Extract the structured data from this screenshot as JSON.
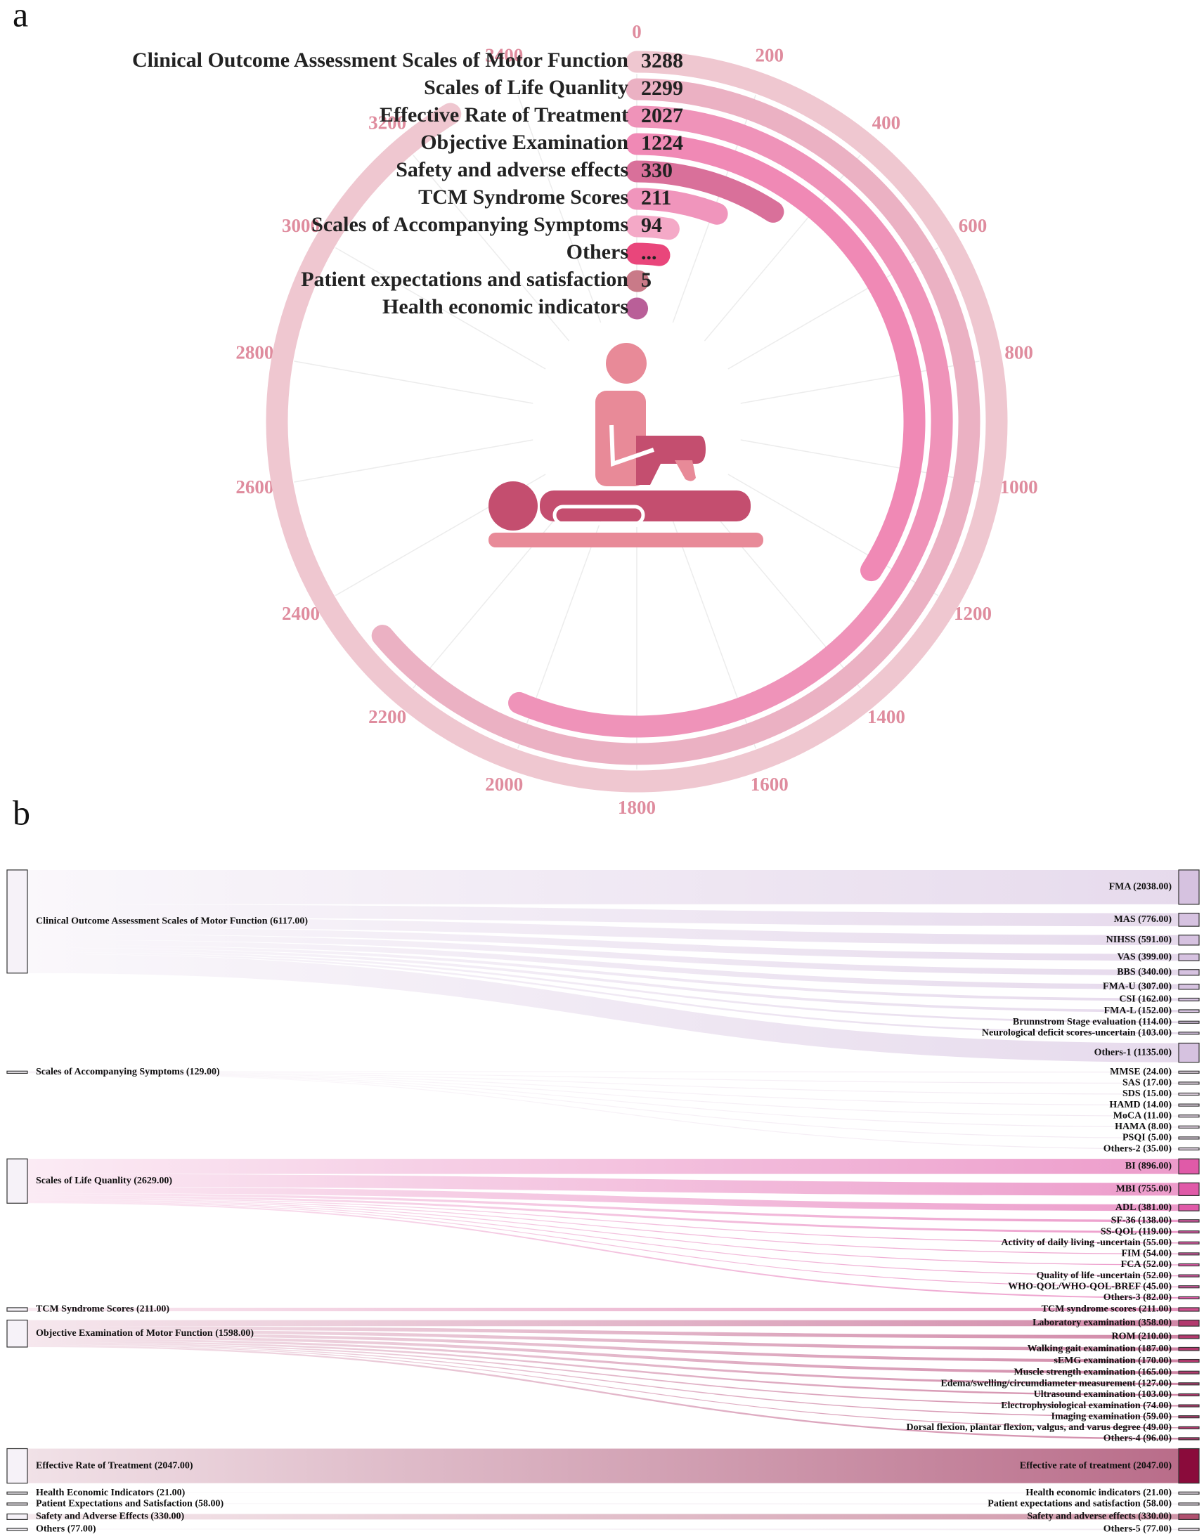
{
  "chart_data": [
    {
      "type": "radial-bar",
      "panel": "a",
      "categories": [
        "Clinical Outcome Assessment Scales of Motor Function",
        "Scales of Life Quanlity",
        "Effective Rate of Treatment",
        "Objective Examination",
        "Safety and adverse effects",
        "TCM Syndrome Scores",
        "Scales of Accompanying Symptoms",
        "Others",
        "Patient expectations and satisfaction",
        "Health economic indicators"
      ],
      "values": [
        3288,
        2299,
        2027,
        1224,
        330,
        211,
        94,
        77,
        5,
        2
      ],
      "value_labels": [
        "3288",
        "2299",
        "2027",
        "1224",
        "330",
        "211",
        "94",
        "...",
        "5",
        null
      ],
      "colors": [
        "#efc7d0",
        "#ebb1c3",
        "#ef93b9",
        "#f089b5",
        "#d9709a",
        "#f095bc",
        "#f4a9c7",
        "#e9467b",
        "#c97a88",
        "#b95f98"
      ],
      "xlim": [
        0,
        3600
      ],
      "xticks": [
        0,
        200,
        400,
        600,
        800,
        1000,
        1200,
        1400,
        1600,
        1800,
        2000,
        2200,
        2400,
        2600,
        2800,
        3000,
        3200,
        3400
      ],
      "grid": true
    },
    {
      "type": "sankey",
      "panel": "b",
      "flows": [
        {
          "label": "Clinical Outcome Assessment Scales of Motor Function (6117.00)",
          "value": 6117,
          "color": "#d6c2e0",
          "targets": [
            {
              "label": "FMA (2038.00)",
              "value": 2038
            },
            {
              "label": "MAS (776.00)",
              "value": 776
            },
            {
              "label": "NIHSS (591.00)",
              "value": 591
            },
            {
              "label": "VAS (399.00)",
              "value": 399
            },
            {
              "label": "BBS (340.00)",
              "value": 340
            },
            {
              "label": "FMA-U (307.00)",
              "value": 307
            },
            {
              "label": "CSI (162.00)",
              "value": 162
            },
            {
              "label": "FMA-L (152.00)",
              "value": 152
            },
            {
              "label": "Brunnstrom Stage evaluation (114.00)",
              "value": 114
            },
            {
              "label": "Neurological deficit scores-uncertain (103.00)",
              "value": 103
            },
            {
              "label": "Others-1 (1135.00)",
              "value": 1135
            }
          ]
        },
        {
          "label": "Scales of Accompanying Symptoms (129.00)",
          "value": 129,
          "color": "#eadbea",
          "targets": [
            {
              "label": "MMSE (24.00)",
              "value": 24
            },
            {
              "label": "SAS (17.00)",
              "value": 17
            },
            {
              "label": "SDS (15.00)",
              "value": 15
            },
            {
              "label": "HAMD (14.00)",
              "value": 14
            },
            {
              "label": "MoCA (11.00)",
              "value": 11
            },
            {
              "label": "HAMA (8.00)",
              "value": 8
            },
            {
              "label": "PSQI (5.00)",
              "value": 5
            },
            {
              "label": "Others-2 (35.00)",
              "value": 35
            }
          ]
        },
        {
          "label": "Scales of Life Quanlity (2629.00)",
          "value": 2629,
          "color": "#e05aa8",
          "targets": [
            {
              "label": "BI (896.00)",
              "value": 896
            },
            {
              "label": "MBI (755.00)",
              "value": 755
            },
            {
              "label": "ADL (381.00)",
              "value": 381
            },
            {
              "label": "SF-36 (138.00)",
              "value": 138
            },
            {
              "label": "SS-QOL (119.00)",
              "value": 119
            },
            {
              "label": "Activity of daily living -uncertain (55.00)",
              "value": 55
            },
            {
              "label": "FIM (54.00)",
              "value": 54
            },
            {
              "label": "FCA (52.00)",
              "value": 52
            },
            {
              "label": "Quality of life -uncertain (52.00)",
              "value": 52
            },
            {
              "label": "WHO-QOL/WHO-QOL-BREF (45.00)",
              "value": 45
            },
            {
              "label": "Others-3 (82.00)",
              "value": 82
            }
          ]
        },
        {
          "label": "TCM Syndrome Scores (211.00)",
          "value": 211,
          "color": "#d0508f",
          "targets": [
            {
              "label": "TCM syndrome scores (211.00)",
              "value": 211
            }
          ]
        },
        {
          "label": "Objective Examination of Motor Function (1598.00)",
          "value": 1598,
          "color": "#b23a6e",
          "targets": [
            {
              "label": "Laboratory examination (358.00)",
              "value": 358
            },
            {
              "label": "ROM (210.00)",
              "value": 210
            },
            {
              "label": "Walking gait examination (187.00)",
              "value": 187
            },
            {
              "label": "sEMG examination (170.00)",
              "value": 170
            },
            {
              "label": "Muscle strength examination (165.00)",
              "value": 165
            },
            {
              "label": "Edema/swelling/circumdiameter measurement (127.00)",
              "value": 127
            },
            {
              "label": "Ultrasound examination (103.00)",
              "value": 103
            },
            {
              "label": "Electrophysiological examination (74.00)",
              "value": 74
            },
            {
              "label": "Imaging examination (59.00)",
              "value": 59
            },
            {
              "label": "Dorsal flexion, plantar flexion, valgus, and varus degree (49.00)",
              "value": 49
            },
            {
              "label": "Others-4 (96.00)",
              "value": 96
            }
          ]
        },
        {
          "label": "Effective Rate of Treatment (2047.00)",
          "value": 2047,
          "color": "#8a0b3b",
          "targets": [
            {
              "label": "Effective rate of treatment (2047.00)",
              "value": 2047
            }
          ]
        },
        {
          "label": "Health Economic Indicators (21.00)",
          "value": 21,
          "color": "#e8dde8",
          "targets": [
            {
              "label": "Health economic indicators (21.00)",
              "value": 21
            }
          ]
        },
        {
          "label": "Patient Expectations and Satisfaction (58.00)",
          "value": 58,
          "color": "#e8dde8",
          "targets": [
            {
              "label": "Patient expectations and satisfaction (58.00)",
              "value": 58
            }
          ]
        },
        {
          "label": "Safety and Adverse Effects (330.00)",
          "value": 330,
          "color": "#b0506f",
          "targets": [
            {
              "label": "Safety and adverse effects (330.00)",
              "value": 330
            }
          ]
        },
        {
          "label": "Others (77.00)",
          "value": 77,
          "color": "#e8dde8",
          "targets": [
            {
              "label": "Others-5 (77.00)",
              "value": 77
            }
          ]
        }
      ]
    }
  ]
}
